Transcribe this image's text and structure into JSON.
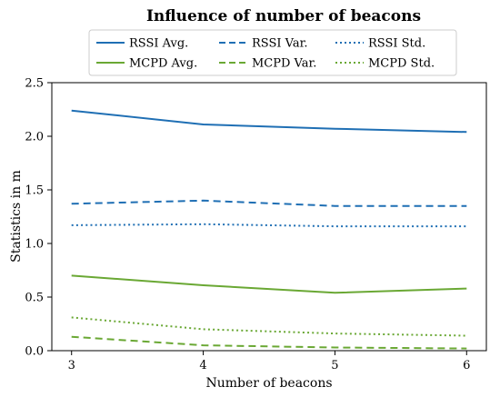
{
  "chart_data": {
    "type": "line",
    "title": "Influence of number of beacons",
    "xlabel": "Number of beacons",
    "ylabel": "Statistics in m",
    "x": [
      3,
      4,
      5,
      6
    ],
    "xlim": [
      2.85,
      6.15
    ],
    "ylim": [
      0.0,
      2.5
    ],
    "xticks": [
      "3",
      "4",
      "5",
      "6"
    ],
    "yticks": [
      "0.0",
      "0.5",
      "1.0",
      "1.5",
      "2.0",
      "2.5"
    ],
    "grid": false,
    "legend_position": "top",
    "series": [
      {
        "name": "RSSI Avg.",
        "values": [
          2.24,
          2.11,
          2.07,
          2.04
        ],
        "color": "#1f6fb4",
        "style": "solid"
      },
      {
        "name": "RSSI Var.",
        "values": [
          1.37,
          1.4,
          1.35,
          1.35
        ],
        "color": "#1f6fb4",
        "style": "dashed"
      },
      {
        "name": "RSSI Std.",
        "values": [
          1.17,
          1.18,
          1.16,
          1.16
        ],
        "color": "#1f6fb4",
        "style": "dotted"
      },
      {
        "name": "MCPD Avg.",
        "values": [
          0.7,
          0.61,
          0.54,
          0.58
        ],
        "color": "#6aa834",
        "style": "solid"
      },
      {
        "name": "MCPD Var.",
        "values": [
          0.13,
          0.05,
          0.03,
          0.02
        ],
        "color": "#6aa834",
        "style": "dashed"
      },
      {
        "name": "MCPD Std.",
        "values": [
          0.31,
          0.2,
          0.16,
          0.14
        ],
        "color": "#6aa834",
        "style": "dotted"
      }
    ]
  }
}
